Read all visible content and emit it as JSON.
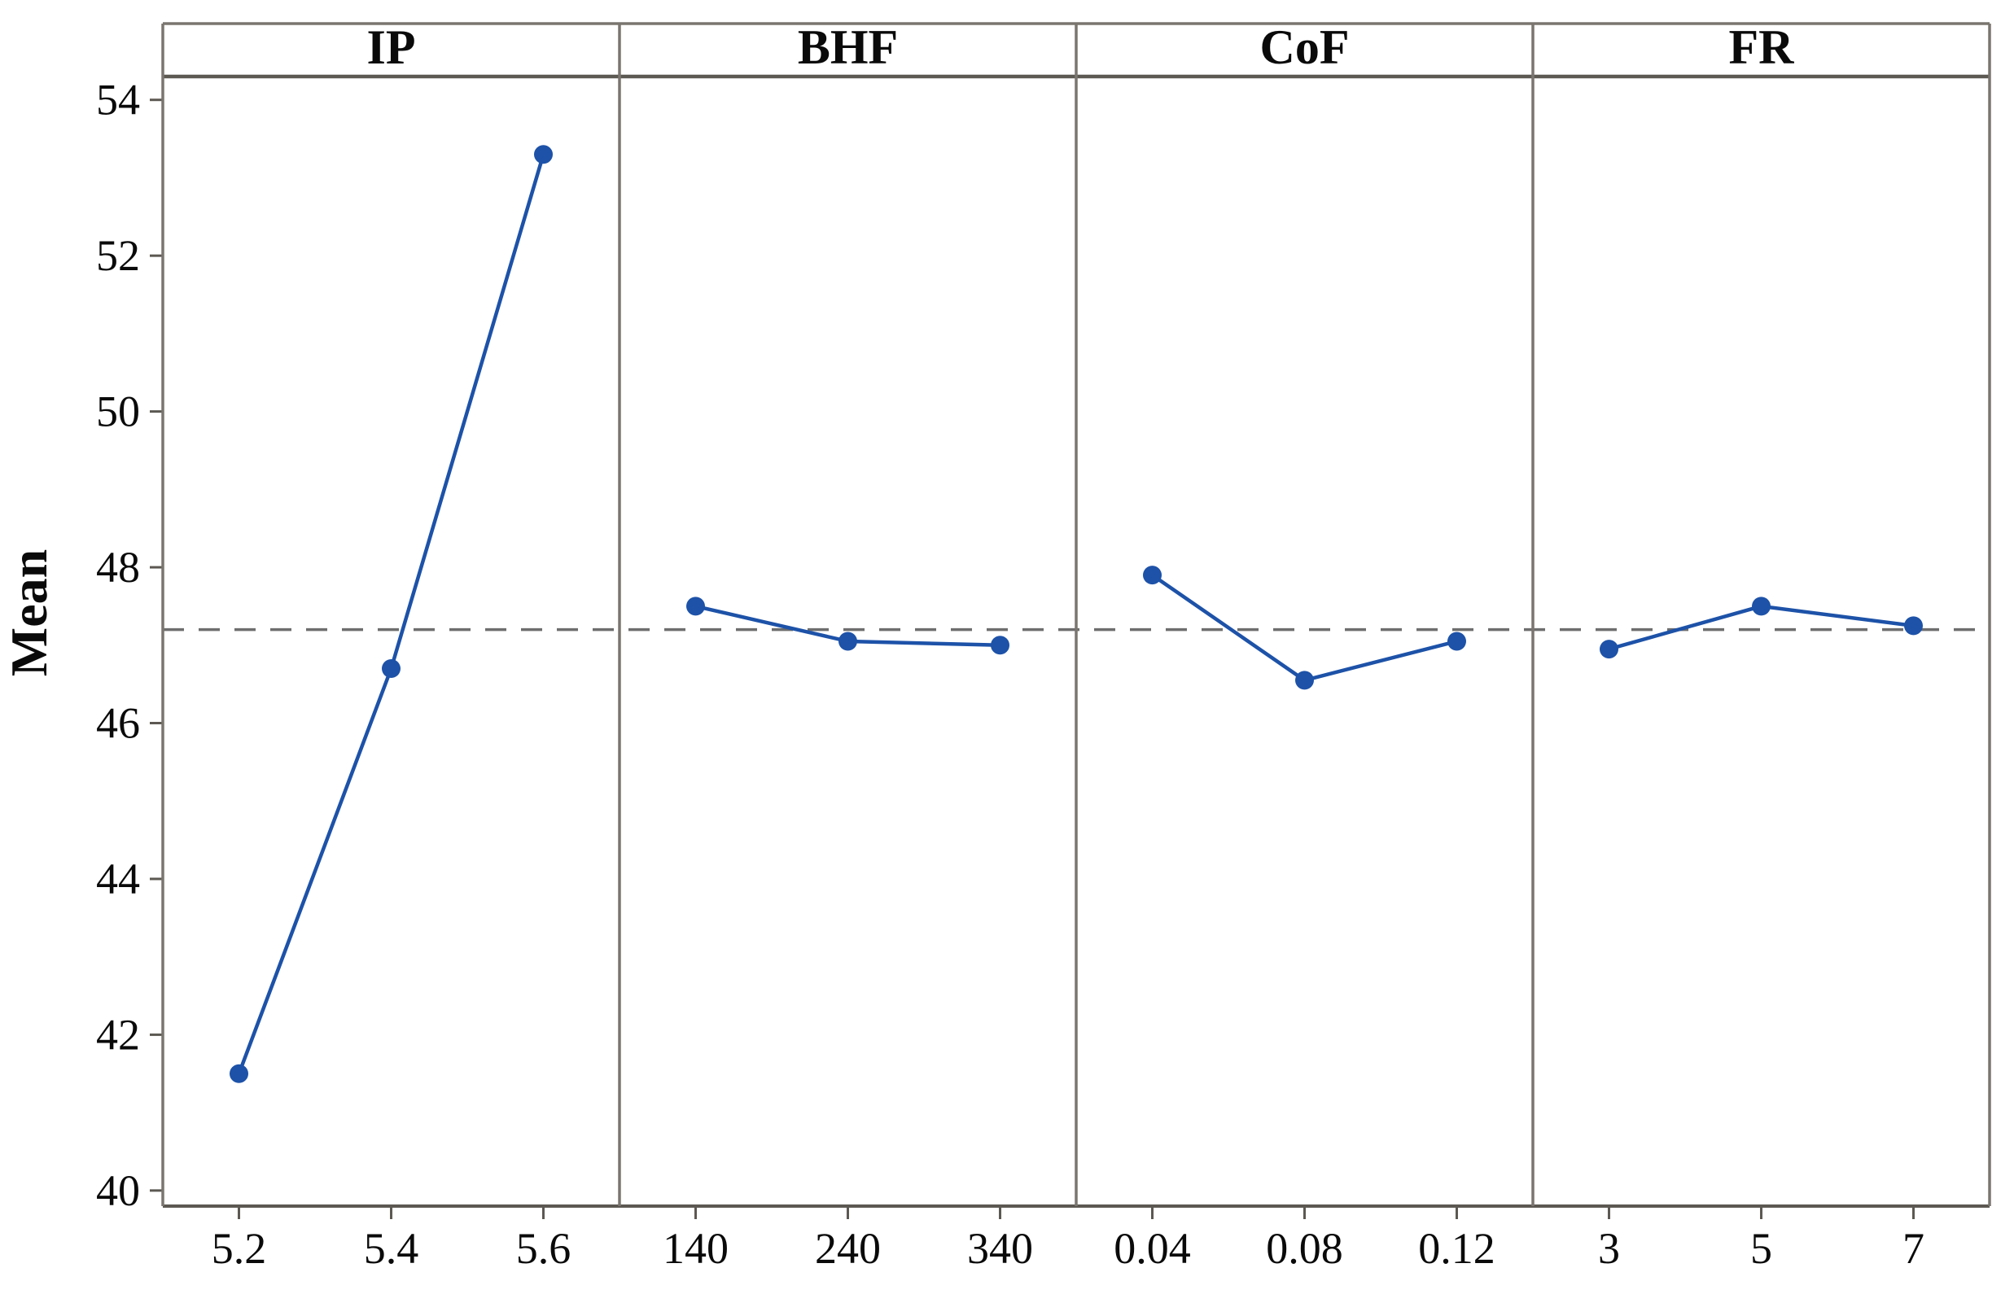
{
  "chart_data": {
    "type": "line",
    "subtype": "main_effects_plot",
    "title": "",
    "ylabel": "Mean",
    "xlabel": "",
    "ylim": [
      39.8,
      54.3
    ],
    "yticks": [
      54,
      52,
      50,
      48,
      46,
      44,
      42,
      40
    ],
    "reference_line_mean": 47.2,
    "grid": false,
    "legend": "none",
    "panels": [
      {
        "label": "IP",
        "categories": [
          "5.2",
          "5.4",
          "5.6"
        ],
        "values": [
          41.5,
          46.7,
          53.3
        ]
      },
      {
        "label": "BHF",
        "categories": [
          "140",
          "240",
          "340"
        ],
        "values": [
          47.5,
          47.05,
          47.0
        ]
      },
      {
        "label": "CoF",
        "categories": [
          "0.04",
          "0.08",
          "0.12"
        ],
        "values": [
          47.9,
          46.55,
          47.05
        ]
      },
      {
        "label": "FR",
        "categories": [
          "3",
          "5",
          "7"
        ],
        "values": [
          46.95,
          47.5,
          47.25
        ]
      }
    ]
  },
  "colors": {
    "series": "#1d52a8",
    "reference_line": "#6e6e6e",
    "panel_border": "#7a756f",
    "axis_line": "#5c5852",
    "text": "#0a0a0a",
    "background": "#ffffff"
  }
}
